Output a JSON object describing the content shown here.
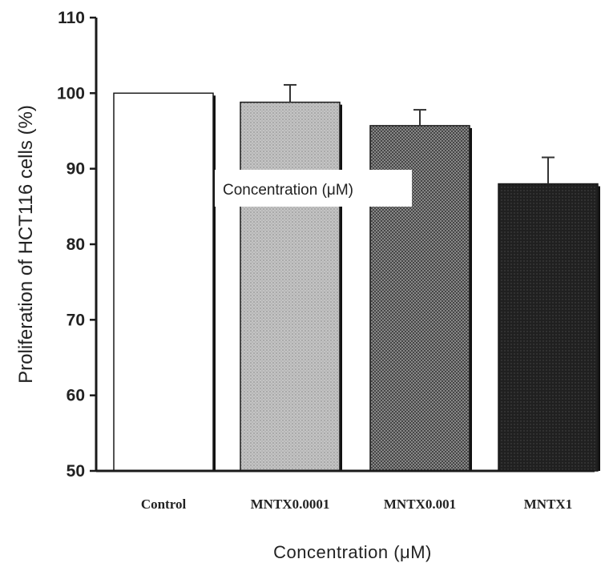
{
  "chart_data": {
    "type": "bar",
    "categories": [
      "Control",
      "MNTX0.0001",
      "MNTX0.001",
      "MNTX1"
    ],
    "values": [
      100,
      98.8,
      95.7,
      88.0
    ],
    "errors": [
      0,
      2.3,
      2.1,
      3.5
    ],
    "xlabel": "Concentration (μM)",
    "ylabel": "Proliferation of HCT116 cells (%)",
    "ylim": [
      50,
      110
    ],
    "yticks": [
      50,
      60,
      70,
      80,
      90,
      100,
      110
    ],
    "annotation": "Concentration (μM)",
    "bar_fills": [
      "#ffffff",
      "#bdbdbd",
      "#8c8c8c",
      "#1e1e1e"
    ],
    "grid": false,
    "legend": "none"
  }
}
